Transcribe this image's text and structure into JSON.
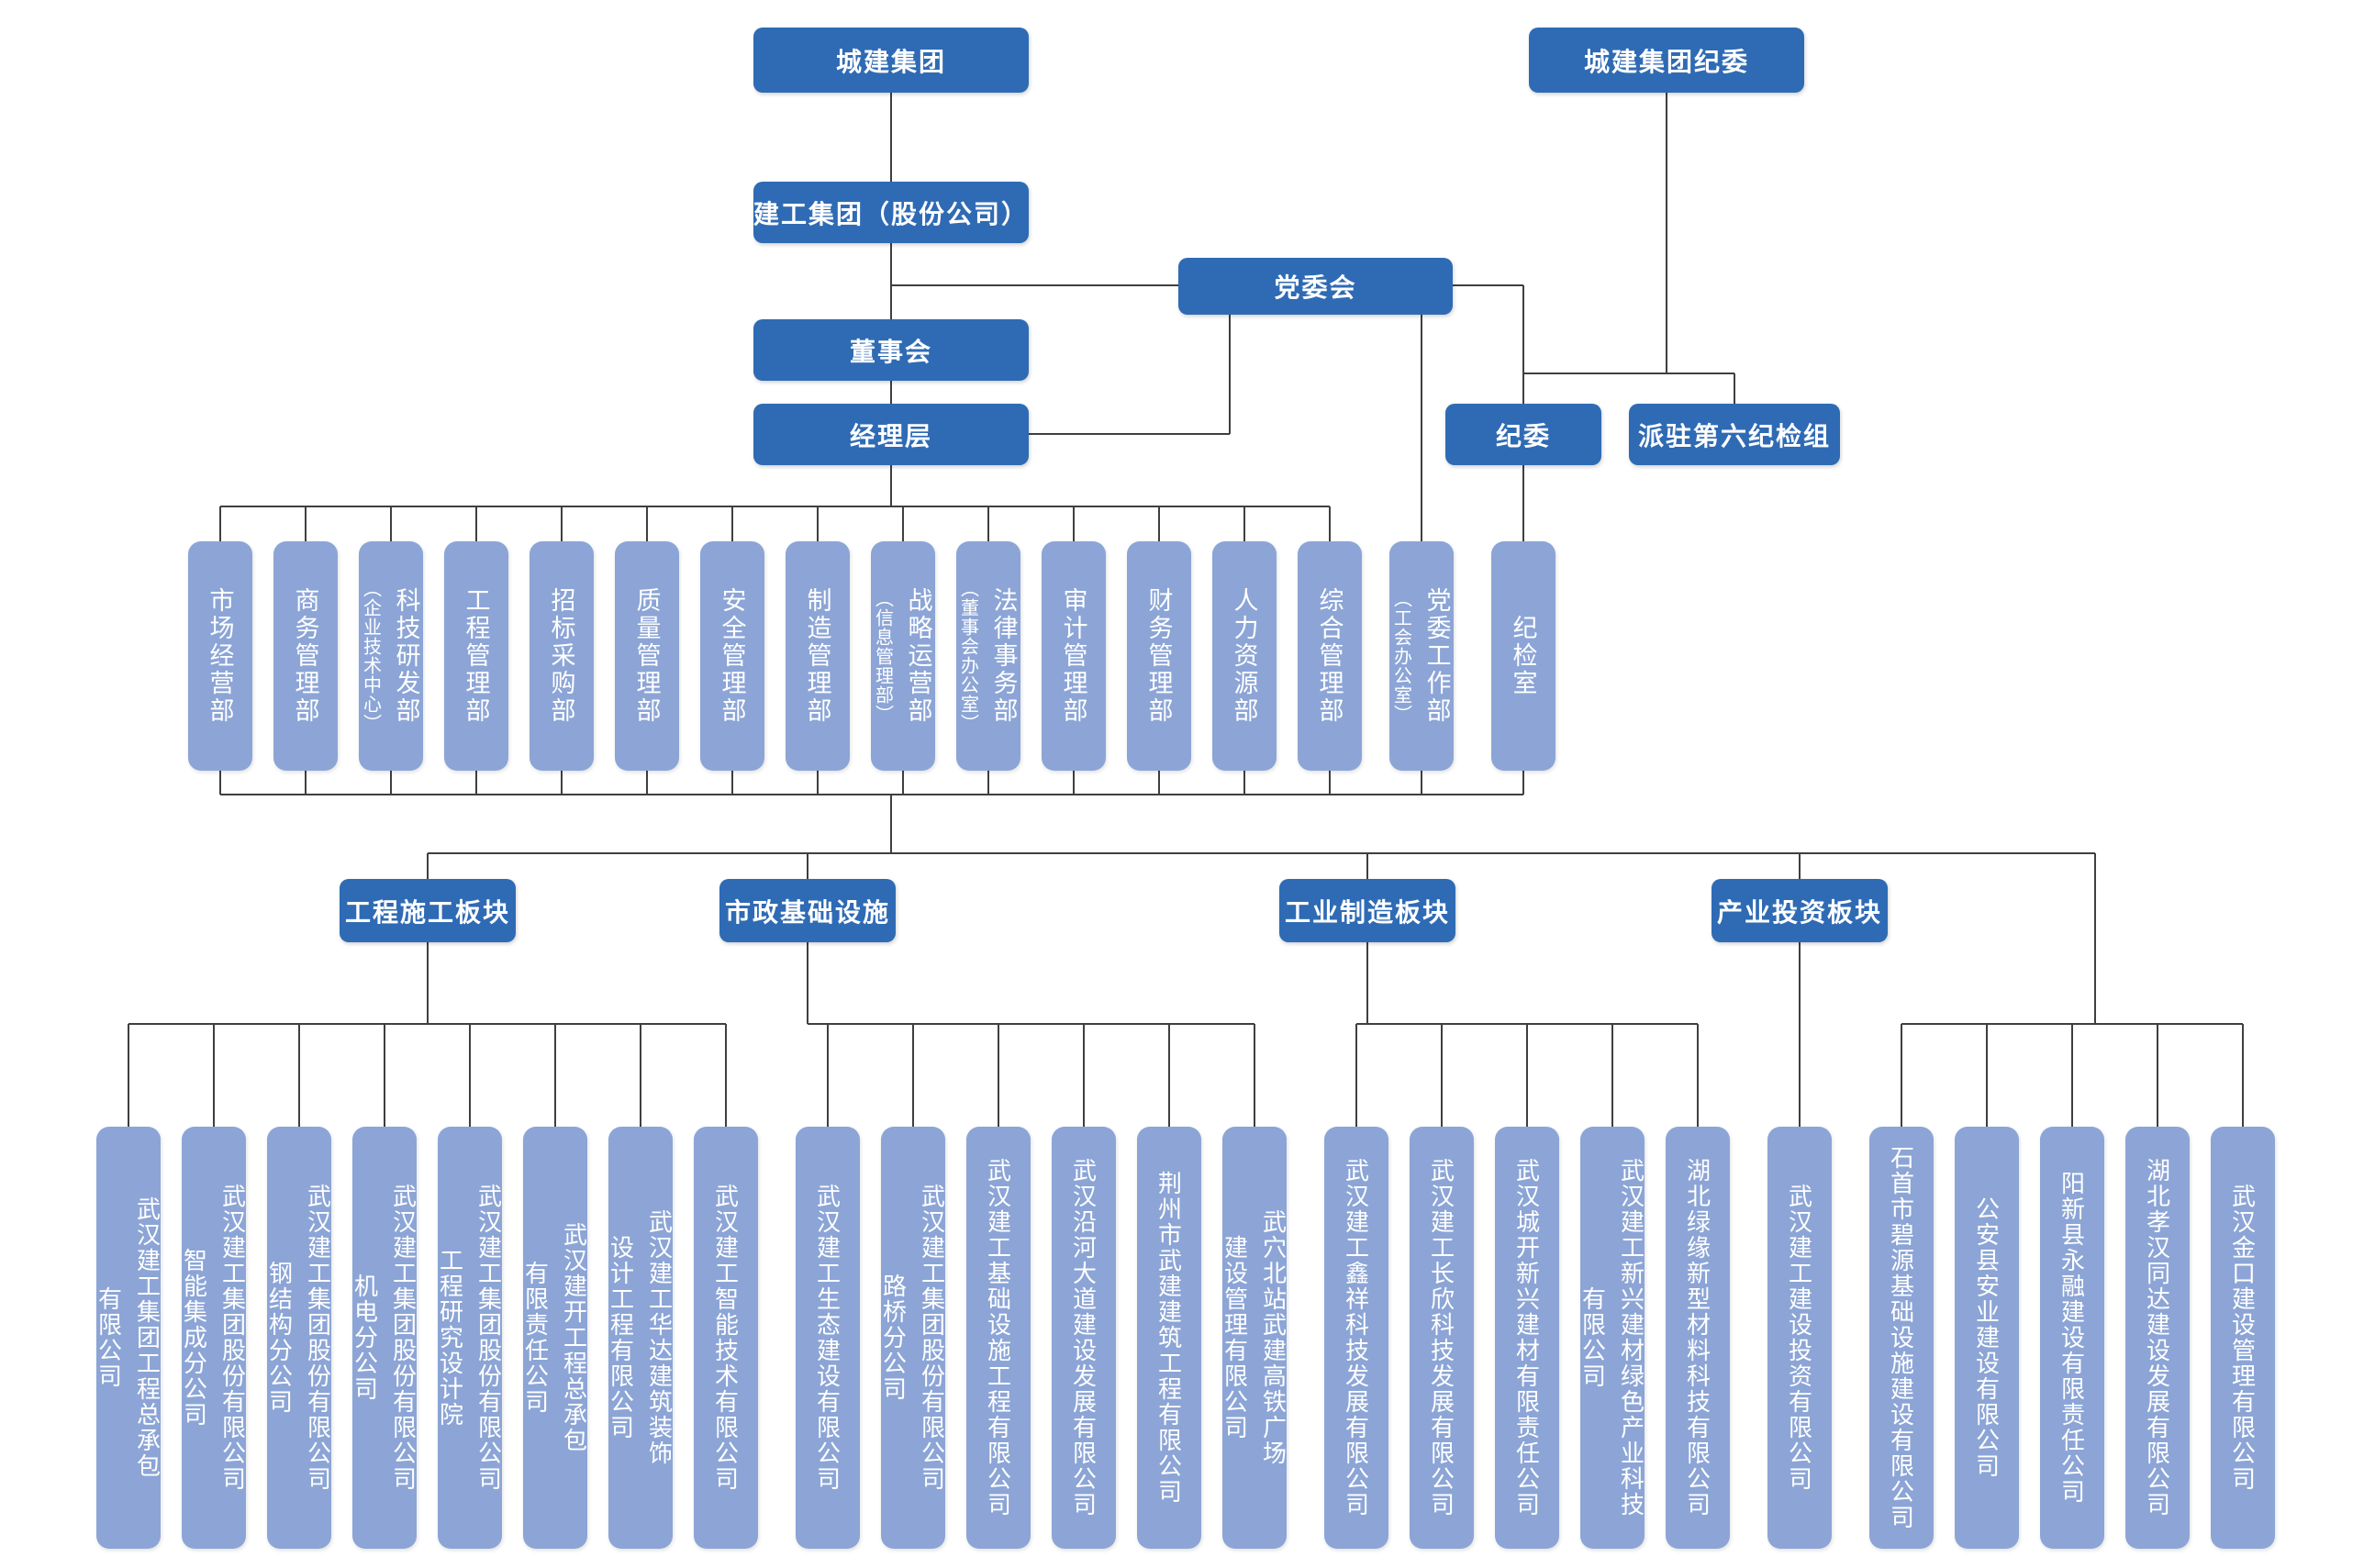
{
  "colors": {
    "node_dark_blue": "#2F6BB4",
    "node_light_blue": "#8CA5D6",
    "connector": "#3f3f3f",
    "text": "#ffffff",
    "background": "#ffffff"
  },
  "nodes": {
    "group": "城建集团",
    "group_discipline_committee": "城建集团纪委",
    "stock_company": "建工集团（股份公司）",
    "party_committee": "党委会",
    "board_of_directors": "董事会",
    "management": "经理层",
    "discipline_committee": "纪委",
    "dispatched_sixth_inspection_team": "派驻第六纪检组"
  },
  "departments": [
    {
      "main": "市场经营部",
      "sub": ""
    },
    {
      "main": "商务管理部",
      "sub": ""
    },
    {
      "main": "科技研发部",
      "sub": "（企业技术中心）"
    },
    {
      "main": "工程管理部",
      "sub": ""
    },
    {
      "main": "招标采购部",
      "sub": ""
    },
    {
      "main": "质量管理部",
      "sub": ""
    },
    {
      "main": "安全管理部",
      "sub": ""
    },
    {
      "main": "制造管理部",
      "sub": ""
    },
    {
      "main": "战略运营部",
      "sub": "（信息管理部）"
    },
    {
      "main": "法律事务部",
      "sub": "（董事会办公室）"
    },
    {
      "main": "审计管理部",
      "sub": ""
    },
    {
      "main": "财务管理部",
      "sub": ""
    },
    {
      "main": "人力资源部",
      "sub": ""
    },
    {
      "main": "综合管理部",
      "sub": ""
    },
    {
      "main": "党委工作部",
      "sub": "（工会办公室）"
    },
    {
      "main": "纪检室",
      "sub": ""
    }
  ],
  "company_groups": [
    {
      "segment_label": "工程施工板块",
      "items": [
        "武汉建工集团工程总承包\n有限公司",
        "武汉建工集团股份有限公司\n智能集成分公司",
        "武汉建工集团股份有限公司\n钢结构分公司",
        "武汉建工集团股份有限公司\n机电分公司",
        "武汉建工集团股份有限公司\n工程研究设计院",
        "武汉建开工程总承包\n有限责任公司",
        "武汉建工华达建筑装饰\n设计工程有限公司",
        "武汉建工智能技术有限公司"
      ]
    },
    {
      "segment_label": "市政基础设施",
      "items": [
        "武汉建工生态建设有限公司",
        "武汉建工集团股份有限公司\n路桥分公司",
        "武汉建工基础设施工程有限公司",
        "武汉沿河大道建设发展有限公司",
        "荆州市武建建筑工程有限公司",
        "武穴北站武建高铁广场\n建设管理有限公司"
      ]
    },
    {
      "segment_label": "工业制造板块",
      "items": [
        "武汉建工鑫祥科技发展有限公司",
        "武汉建工长欣科技发展有限公司",
        "武汉城开新兴建材有限责任公司",
        "武汉建工新兴建材绿色产业科技\n有限公司",
        "湖北绿缘新型材料科技有限公司"
      ]
    },
    {
      "segment_label": "产业投资板块",
      "items": [
        "武汉建工建设投资有限公司"
      ]
    },
    {
      "segment_label": "",
      "items": [
        "石首市碧源基础设施建设有限公司",
        "公安县安业建设有限公司",
        "阳新县永融建设有限责任公司",
        "湖北孝汉同达建设发展有限公司",
        "武汉金口建设管理有限公司"
      ]
    }
  ]
}
